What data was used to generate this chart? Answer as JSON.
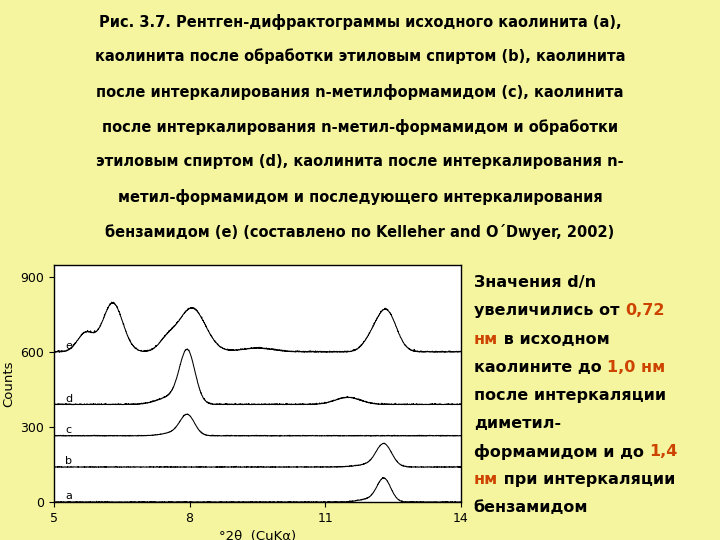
{
  "background_color": "#f5f5a0",
  "title_lines": [
    {
      "text": "Рис. 3.7. Рентген-дифрактограммы исходного каолинита (a),",
      "bold": true,
      "size": 10.5
    },
    {
      "text": "каолинита после обработки этиловым спиртом (b), каолинита",
      "bold": true,
      "size": 10.5
    },
    {
      "text": "после интеркалирования n-метилформамидом (c), каолинита",
      "bold": true,
      "size": 10.5
    },
    {
      "text": "после интеркалирования n-метил-формамидом и обработки",
      "bold": true,
      "size": 10.5
    },
    {
      "text": "этиловым спиртом (d), каолинита после интеркалирования n-",
      "bold": true,
      "size": 10.5
    },
    {
      "text": "метил-формамидом и последующего интеркалирования",
      "bold": true,
      "size": 10.5
    },
    {
      "text": "бензамидом (e) (составлено по Kelleher and O´Dwyer, 2002)",
      "bold": true,
      "size": 10.5
    }
  ],
  "xlabel": "°2θ  (CuKα)",
  "ylabel": "Counts",
  "xlim": [
    5,
    14
  ],
  "ylim": [
    0,
    950
  ],
  "yticks": [
    0,
    300,
    600,
    900
  ],
  "xticks": [
    5,
    8,
    11,
    14
  ],
  "ann_lines": [
    [
      {
        "text": "Значения d/n",
        "color": "#000000"
      }
    ],
    [
      {
        "text": "увеличились от ",
        "color": "#000000"
      },
      {
        "text": "0,72",
        "color": "#cc4400"
      }
    ],
    [
      {
        "text": "нм",
        "color": "#cc4400"
      },
      {
        "text": " в исходном",
        "color": "#000000"
      }
    ],
    [
      {
        "text": "каолините до ",
        "color": "#000000"
      },
      {
        "text": "1,0 нм",
        "color": "#cc4400"
      }
    ],
    [
      {
        "text": "после интеркаляции",
        "color": "#000000"
      }
    ],
    [
      {
        "text": "диметил-",
        "color": "#000000"
      }
    ],
    [
      {
        "text": "формамидом и до ",
        "color": "#000000"
      },
      {
        "text": "1,4",
        "color": "#cc4400"
      }
    ],
    [
      {
        "text": "нм",
        "color": "#cc4400"
      },
      {
        "text": " при интеркаляции",
        "color": "#000000"
      }
    ],
    [
      {
        "text": "бензамидом",
        "color": "#000000"
      }
    ]
  ],
  "curve_labels": [
    "a",
    "b",
    "c",
    "d",
    "e"
  ],
  "curve_offsets": [
    0,
    140,
    265,
    390,
    600
  ],
  "curve_color": "#000000",
  "plot_bg_color": "#ffffff",
  "border_color": "#000000",
  "ann_fontsize": 11.5,
  "ann_bold": true
}
